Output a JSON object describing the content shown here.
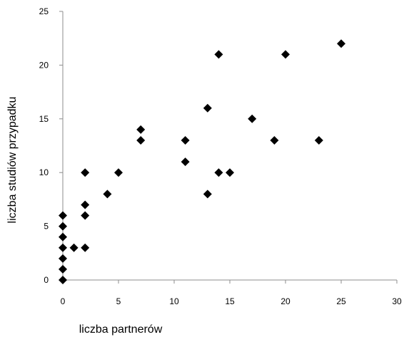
{
  "chart_data": {
    "type": "scatter",
    "title": "",
    "xlabel": "liczba partnerów",
    "ylabel": "liczba studiów przypadku",
    "xlim": [
      0,
      30
    ],
    "ylim": [
      0,
      25
    ],
    "xticks": [
      "0",
      "5",
      "10",
      "15",
      "20",
      "25",
      "30"
    ],
    "yticks": [
      "0",
      "5",
      "10",
      "15",
      "20",
      "25"
    ],
    "grid": false,
    "legend": "none",
    "marker": "diamond",
    "marker_color": "#000000",
    "points": [
      {
        "x": 0,
        "y": 0
      },
      {
        "x": 0,
        "y": 1
      },
      {
        "x": 0,
        "y": 2
      },
      {
        "x": 0,
        "y": 3
      },
      {
        "x": 0,
        "y": 4
      },
      {
        "x": 0,
        "y": 5
      },
      {
        "x": 0,
        "y": 6
      },
      {
        "x": 1,
        "y": 3
      },
      {
        "x": 2,
        "y": 3
      },
      {
        "x": 2,
        "y": 6
      },
      {
        "x": 2,
        "y": 7
      },
      {
        "x": 2,
        "y": 10
      },
      {
        "x": 4,
        "y": 8
      },
      {
        "x": 5,
        "y": 10
      },
      {
        "x": 7,
        "y": 13
      },
      {
        "x": 7,
        "y": 14
      },
      {
        "x": 11,
        "y": 11
      },
      {
        "x": 11,
        "y": 13
      },
      {
        "x": 13,
        "y": 8
      },
      {
        "x": 13,
        "y": 16
      },
      {
        "x": 14,
        "y": 10
      },
      {
        "x": 14,
        "y": 21
      },
      {
        "x": 15,
        "y": 10
      },
      {
        "x": 17,
        "y": 15
      },
      {
        "x": 19,
        "y": 13
      },
      {
        "x": 20,
        "y": 21
      },
      {
        "x": 23,
        "y": 13
      },
      {
        "x": 25,
        "y": 22
      }
    ]
  }
}
